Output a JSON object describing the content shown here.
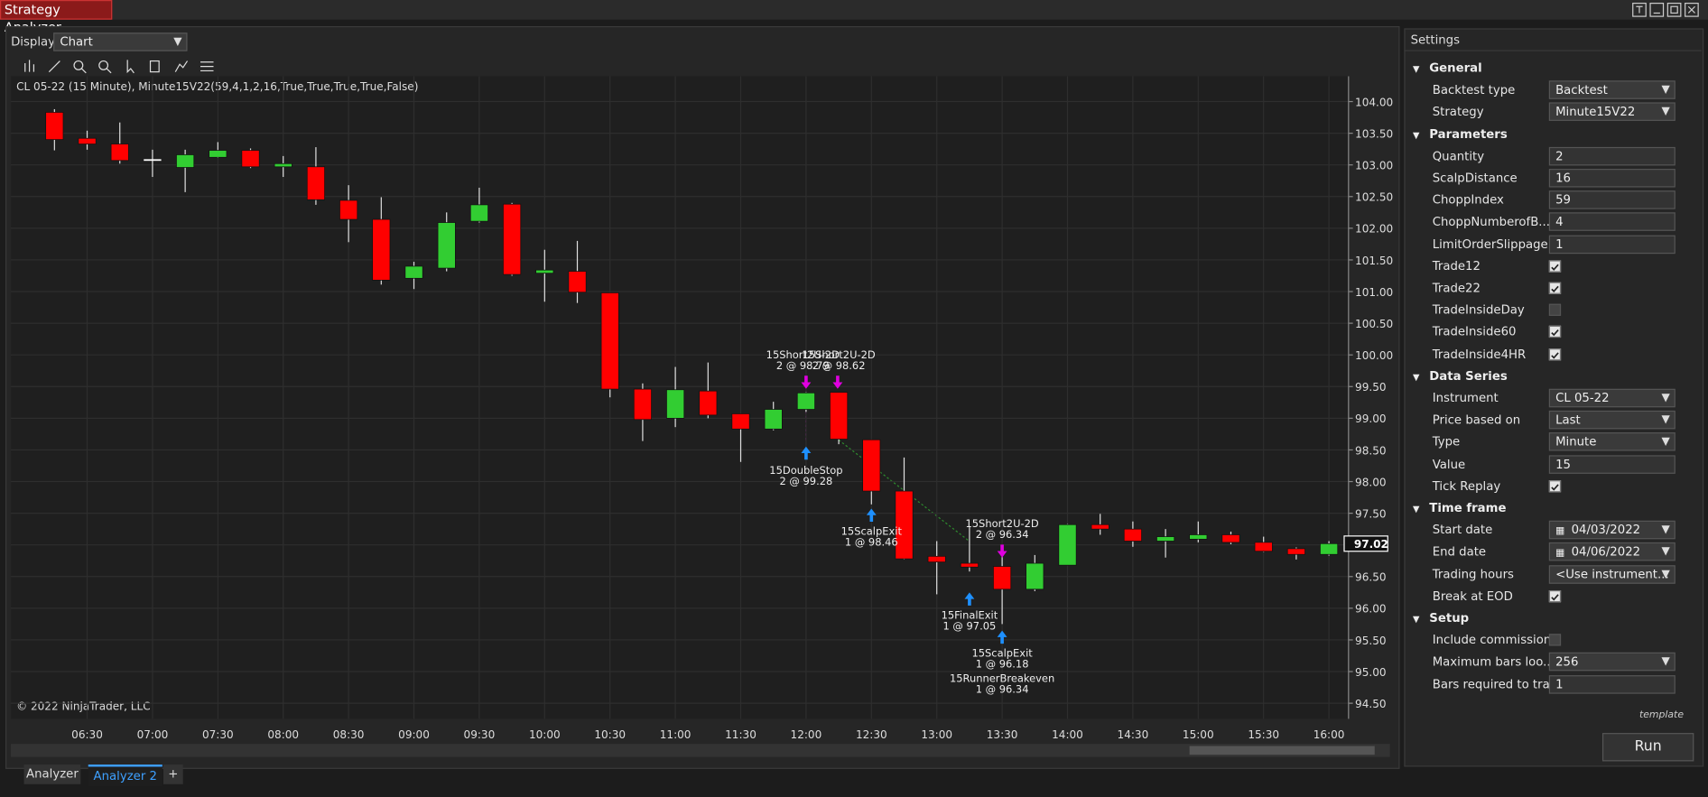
{
  "window": {
    "title": "Strategy Analyzer",
    "display_label": "Display",
    "display_value": "Chart",
    "tabs": [
      "Analyzer",
      "Analyzer 2",
      "+"
    ]
  },
  "chart_data": {
    "type": "candlestick",
    "title": "CL 05-22 (15 Minute), Minute15V22(59,4,1,2,16,True,True,True,True,False)",
    "footnote": "© 2022 NinjaTrader, LLC",
    "categories": [
      null,
      "06:30",
      null,
      "07:00",
      null,
      "07:30",
      null,
      "08:00",
      null,
      "08:30",
      null,
      "09:00",
      null,
      "09:30",
      null,
      "10:00",
      null,
      "10:30",
      null,
      "11:00",
      null,
      "11:30",
      null,
      "12:00",
      null,
      "12:30",
      null,
      "13:00",
      null,
      "13:30",
      null,
      "14:00",
      null,
      "14:30",
      null,
      "15:00",
      null,
      "15:30",
      null,
      "16:00"
    ],
    "open": [
      103.83,
      103.42,
      103.33,
      103.09,
      102.96,
      103.12,
      103.23,
      102.97,
      102.97,
      102.44,
      102.14,
      101.21,
      101.37,
      102.11,
      102.38,
      101.29,
      101.32,
      100.98,
      99.46,
      99.0,
      99.43,
      99.07,
      98.83,
      99.14,
      99.41,
      98.66,
      97.85,
      96.82,
      96.71,
      96.66,
      96.3,
      96.68,
      97.32,
      97.25,
      97.06,
      97.09,
      97.16,
      97.04,
      96.94,
      96.85
    ],
    "high": [
      103.88,
      103.54,
      103.67,
      103.24,
      103.24,
      103.36,
      103.26,
      103.14,
      103.28,
      102.68,
      102.49,
      101.47,
      102.25,
      102.64,
      102.4,
      101.66,
      101.8,
      100.98,
      99.55,
      99.81,
      99.88,
      99.07,
      99.26,
      99.41,
      99.41,
      98.66,
      98.38,
      97.06,
      97.28,
      96.94,
      96.84,
      97.33,
      97.49,
      97.37,
      97.25,
      97.37,
      97.21,
      97.13,
      96.96,
      97.06
    ],
    "low": [
      103.23,
      103.24,
      103.02,
      102.81,
      102.57,
      103.11,
      102.95,
      102.81,
      102.37,
      101.78,
      101.11,
      101.04,
      101.32,
      102.09,
      101.25,
      100.84,
      100.82,
      99.33,
      98.64,
      98.86,
      99.0,
      98.31,
      98.81,
      99.1,
      98.59,
      97.64,
      96.77,
      96.22,
      96.58,
      95.75,
      96.27,
      96.68,
      97.16,
      96.97,
      96.8,
      97.04,
      97.01,
      96.89,
      96.77,
      96.83
    ],
    "close": [
      103.4,
      103.33,
      103.07,
      103.09,
      103.16,
      103.23,
      102.97,
      103.02,
      102.45,
      102.14,
      101.18,
      101.4,
      102.09,
      102.37,
      101.27,
      101.34,
      100.99,
      99.46,
      98.98,
      99.45,
      99.05,
      98.83,
      99.14,
      99.4,
      98.67,
      97.85,
      96.78,
      96.73,
      96.65,
      96.3,
      96.71,
      97.32,
      97.25,
      97.06,
      97.13,
      97.16,
      97.04,
      96.9,
      96.85,
      97.02
    ],
    "colors": {
      "up": "#32cd32",
      "down": "#ff0000",
      "flat": "#ffffff",
      "wick": "#e0e0e0"
    },
    "ylim": [
      94.34,
      104.4
    ],
    "yticks": [
      {
        "value": 94.5,
        "label": "94.50"
      },
      {
        "value": 95,
        "label": "95.00"
      },
      {
        "value": 95.5,
        "label": "95.50"
      },
      {
        "value": 96,
        "label": "96.00"
      },
      {
        "value": 96.5,
        "label": "96.50"
      },
      {
        "value": 97,
        "label": "97.00"
      },
      {
        "value": 97.5,
        "label": "97.50"
      },
      {
        "value": 98,
        "label": "98.00"
      },
      {
        "value": 98.5,
        "label": "98.50"
      },
      {
        "value": 99,
        "label": "99.00"
      },
      {
        "value": 99.5,
        "label": "99.50"
      },
      {
        "value": 100,
        "label": "100.00"
      },
      {
        "value": 100.5,
        "label": "100.50"
      },
      {
        "value": 101,
        "label": "101.00"
      },
      {
        "value": 101.5,
        "label": "101.50"
      },
      {
        "value": 102,
        "label": "102.00"
      },
      {
        "value": 102.5,
        "label": "102.50"
      },
      {
        "value": 103,
        "label": "103.00"
      },
      {
        "value": 103.5,
        "label": "103.50"
      },
      {
        "value": 104,
        "label": "104.00"
      }
    ],
    "grid": true,
    "last_price": 97.02,
    "annotations": [
      {
        "name": "15Short2U-2D",
        "detail": "2 @ 98.79",
        "arrow": "down",
        "color": "#e000e0"
      },
      {
        "name": "15Short2U-2D",
        "detail": "2 @ 98.62",
        "arrow": "down",
        "color": "#e000e0"
      },
      {
        "name": "15DoubleStop",
        "detail": "2 @ 99.28",
        "arrow": "up",
        "color": "#1e90ff"
      },
      {
        "name": "15ScalpExit",
        "detail": "1 @ 98.46",
        "arrow": "up",
        "color": "#1e90ff"
      },
      {
        "name": "15Short2U-2D",
        "detail": "2 @ 96.34",
        "arrow": "down",
        "color": "#e000e0"
      },
      {
        "name": "15FinalExit",
        "detail": "1 @ 97.05",
        "arrow": "up",
        "color": "#1e90ff"
      },
      {
        "name": "15ScalpExit",
        "detail": "1 @ 96.18",
        "arrow": "up",
        "color": "#1e90ff"
      },
      {
        "name": "15RunnerBreakeven",
        "detail": "1 @ 96.34",
        "arrow": "none",
        "color": "#1e90ff"
      }
    ]
  },
  "settings": {
    "title": "Settings",
    "template": "template",
    "run": "Run",
    "sections": [
      {
        "name": "General",
        "items": [
          {
            "label": "Backtest type",
            "value": "Backtest",
            "kind": "dropdown"
          },
          {
            "label": "Strategy",
            "value": "Minute15V22",
            "kind": "dropdown"
          }
        ]
      },
      {
        "name": "Parameters",
        "items": [
          {
            "label": "Quantity",
            "value": "2",
            "kind": "text"
          },
          {
            "label": "ScalpDistance",
            "value": "16",
            "kind": "text"
          },
          {
            "label": "ChoppIndex",
            "value": "59",
            "kind": "text"
          },
          {
            "label": "ChoppNumberofB...",
            "value": "4",
            "kind": "text"
          },
          {
            "label": "LimitOrderSlippage",
            "value": "1",
            "kind": "text"
          },
          {
            "label": "Trade12",
            "checked": true,
            "kind": "checkbox"
          },
          {
            "label": "Trade22",
            "checked": true,
            "kind": "checkbox"
          },
          {
            "label": "TradeInsideDay",
            "checked": false,
            "kind": "checkbox"
          },
          {
            "label": "TradeInside60",
            "checked": true,
            "kind": "checkbox"
          },
          {
            "label": "TradeInside4HR",
            "checked": true,
            "kind": "checkbox"
          }
        ]
      },
      {
        "name": "Data Series",
        "items": [
          {
            "label": "Instrument",
            "value": "CL 05-22",
            "kind": "dropdown"
          },
          {
            "label": "Price based on",
            "value": "Last",
            "kind": "dropdown"
          },
          {
            "label": "Type",
            "value": "Minute",
            "kind": "dropdown"
          },
          {
            "label": "Value",
            "value": "15",
            "kind": "text"
          },
          {
            "label": "Tick Replay",
            "checked": true,
            "kind": "checkbox"
          }
        ]
      },
      {
        "name": "Time frame",
        "items": [
          {
            "label": "Start date",
            "value": "04/03/2022",
            "kind": "date"
          },
          {
            "label": "End date",
            "value": "04/06/2022",
            "kind": "date"
          },
          {
            "label": "Trading hours",
            "value": "<Use instrument...",
            "kind": "dropdown"
          },
          {
            "label": "Break at EOD",
            "checked": true,
            "kind": "checkbox"
          }
        ]
      },
      {
        "name": "Setup",
        "items": [
          {
            "label": "Include commission",
            "checked": false,
            "kind": "checkbox"
          },
          {
            "label": "Maximum bars loo...",
            "value": "256",
            "kind": "dropdown"
          },
          {
            "label": "Bars required to tra...",
            "value": "1",
            "kind": "text"
          }
        ]
      }
    ]
  }
}
